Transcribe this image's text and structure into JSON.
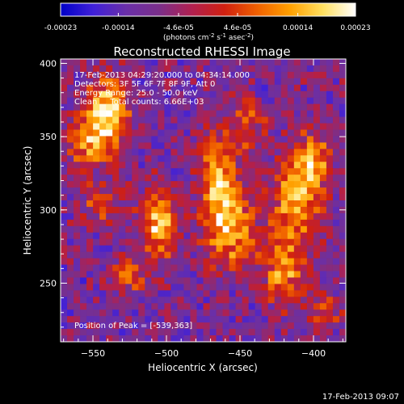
{
  "chart_data": {
    "type": "heatmap",
    "title": "Reconstructed RHESSI Image",
    "xlabel": "Heliocentric X (arcsec)",
    "ylabel": "Heliocentric Y (arcsec)",
    "xlim": [
      -572,
      -378
    ],
    "ylim": [
      210,
      403
    ],
    "x_ticks": [
      -550,
      -500,
      -450,
      -400
    ],
    "y_ticks": [
      250,
      300,
      350,
      400
    ],
    "colorbar": {
      "range": [
        -0.00023,
        0.00023
      ],
      "ticks": [
        "-0.00023",
        "-0.00014",
        "-4.6e-05",
        "4.6e-05",
        "0.00014",
        "0.00023"
      ],
      "tick_values": [
        -0.00023,
        -0.00014,
        -4.6e-05,
        4.6e-05,
        0.00014,
        0.00023
      ],
      "unit_label": "(photons cm-2 s-1 asec-2)",
      "colors": [
        "#0000c8",
        "#4020d8",
        "#6a2fa8",
        "#7a2f8a",
        "#b02050",
        "#d02010",
        "#f06000",
        "#ffa000",
        "#ffe060",
        "#ffffff"
      ]
    },
    "annotations": [
      "17-Feb-2013 04:29:20.000 to 04:34:14.000",
      "Detectors: 3F 5F 6F 7F 8F 9F, Att 0",
      "Energy Range: 25.0 - 50.0 keV",
      "Clean     Total counts: 6.66E+03"
    ],
    "peak_label": "Position of Peak = [-539,363]",
    "sources": [
      {
        "x": -540,
        "y": 365,
        "sx": 10,
        "sy": 18,
        "amp": 1.0
      },
      {
        "x": -555,
        "y": 345,
        "sx": 8,
        "sy": 12,
        "amp": 0.55
      },
      {
        "x": -543,
        "y": 305,
        "sx": 10,
        "sy": 9,
        "amp": 0.45
      },
      {
        "x": -505,
        "y": 290,
        "sx": 8,
        "sy": 16,
        "amp": 0.9
      },
      {
        "x": -525,
        "y": 255,
        "sx": 9,
        "sy": 8,
        "amp": 0.5
      },
      {
        "x": -465,
        "y": 320,
        "sx": 9,
        "sy": 25,
        "amp": 0.75
      },
      {
        "x": -455,
        "y": 285,
        "sx": 12,
        "sy": 18,
        "amp": 0.65
      },
      {
        "x": -445,
        "y": 360,
        "sx": 8,
        "sy": 12,
        "amp": 0.5
      },
      {
        "x": -410,
        "y": 310,
        "sx": 12,
        "sy": 22,
        "amp": 0.8
      },
      {
        "x": -420,
        "y": 260,
        "sx": 10,
        "sy": 18,
        "amp": 0.65
      },
      {
        "x": -400,
        "y": 335,
        "sx": 8,
        "sy": 12,
        "amp": 0.55
      },
      {
        "x": -392,
        "y": 230,
        "sx": 7,
        "sy": 10,
        "amp": 0.45
      }
    ]
  },
  "footer": {
    "timestamp": "17-Feb-2013 09:07"
  }
}
